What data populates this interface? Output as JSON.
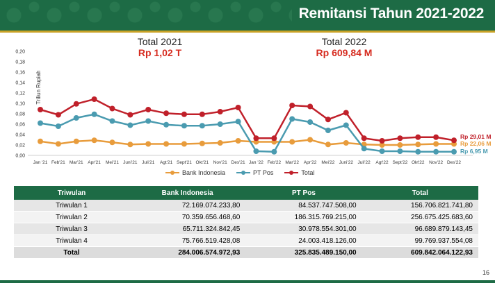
{
  "header": {
    "title": "Remitansi Tahun 2021-2022"
  },
  "totals": [
    {
      "label": "Total 2021",
      "value": "Rp 1,02 T"
    },
    {
      "label": "Total 2022",
      "value": "Rp 609,84 M"
    }
  ],
  "colors": {
    "bank": "#e89c3c",
    "ptpos": "#4a9bb0",
    "total": "#c0202a",
    "header_green": "#1d6b45",
    "accent_gold": "#c9a227"
  },
  "chart_data": {
    "type": "line",
    "ylabel": "Triliun Rupiah",
    "ylim": [
      0,
      0.2
    ],
    "yticks": [
      "0,00",
      "0,02",
      "0,04",
      "0,06",
      "0,08",
      "0,10",
      "0,12",
      "0,14",
      "0,16",
      "0,18",
      "0,20"
    ],
    "categories": [
      "Jan '21",
      "Feb'21",
      "Mar'21",
      "Apr'21",
      "Mei'21",
      "Juni'21",
      "Juli'21",
      "Agt'21",
      "Sept'21",
      "Okt'21",
      "Nov'21",
      "Des'21",
      "Jan '22",
      "Feb'22",
      "Mar'22",
      "Apr'22",
      "Mei'22",
      "Juni'22",
      "Juli'22",
      "Agt'22",
      "Sept'22",
      "Okt'22",
      "Nov'22",
      "Des'22"
    ],
    "series": [
      {
        "name": "Bank Indonesia",
        "values": [
          0.027,
          0.022,
          0.027,
          0.029,
          0.025,
          0.021,
          0.022,
          0.022,
          0.022,
          0.023,
          0.024,
          0.028,
          0.026,
          0.026,
          0.026,
          0.03,
          0.021,
          0.024,
          0.021,
          0.02,
          0.02,
          0.021,
          0.022,
          0.022
        ]
      },
      {
        "name": "PT Pos",
        "values": [
          0.062,
          0.056,
          0.072,
          0.079,
          0.066,
          0.058,
          0.066,
          0.059,
          0.057,
          0.057,
          0.06,
          0.065,
          0.008,
          0.007,
          0.07,
          0.064,
          0.048,
          0.058,
          0.013,
          0.008,
          0.008,
          0.007,
          0.007,
          0.007
        ]
      },
      {
        "name": "Total",
        "values": [
          0.088,
          0.078,
          0.099,
          0.108,
          0.09,
          0.078,
          0.088,
          0.081,
          0.079,
          0.079,
          0.084,
          0.092,
          0.033,
          0.033,
          0.096,
          0.094,
          0.069,
          0.082,
          0.033,
          0.028,
          0.033,
          0.035,
          0.035,
          0.029
        ]
      }
    ],
    "end_labels": [
      "Rp 29,01 M",
      "Rp 22,06 M",
      "Rp 6,95 M"
    ]
  },
  "table": {
    "headers": [
      "Triwulan",
      "Bank Indonesia",
      "PT Pos",
      "Total"
    ],
    "rows": [
      [
        "Triwulan 1",
        "72.169.074.233,80",
        "84.537.747.508,00",
        "156.706.821.741,80"
      ],
      [
        "Triwulan 2",
        "70.359.656.468,60",
        "186.315.769.215,00",
        "256.675.425.683,60"
      ],
      [
        "Triwulan 3",
        "65.711.324.842,45",
        "30.978.554.301,00",
        "96.689.879.143,45"
      ],
      [
        "Triwulan 4",
        "75.766.519.428,08",
        "24.003.418.126,00",
        "99.769.937.554,08"
      ]
    ],
    "total_row": [
      "Total",
      "284.006.574.972,93",
      "325.835.489.150,00",
      "609.842.064.122,93"
    ]
  },
  "page_number": "16"
}
